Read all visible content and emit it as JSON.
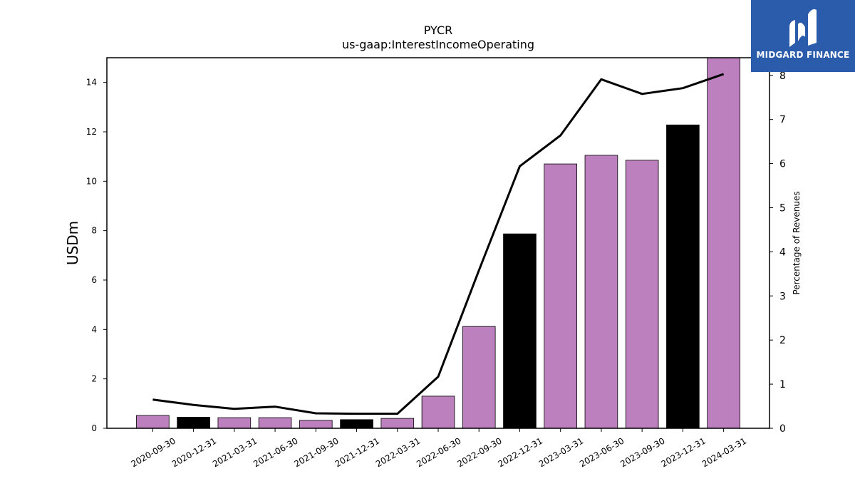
{
  "logo": {
    "text": "MIDGARD FINANCE"
  },
  "chart_data": {
    "type": "bar",
    "title": "PYCR",
    "subtitle": "us-gaap:InterestIncomeOperating",
    "ylabel": "USDm",
    "y2label": "Percentage of Revenues",
    "ylim": [
      0,
      15
    ],
    "y2lim": [
      0,
      8.4
    ],
    "yticks": [
      0,
      2,
      4,
      6,
      8,
      10,
      12,
      14
    ],
    "y2ticks": [
      0,
      1,
      2,
      3,
      4,
      5,
      6,
      7,
      8
    ],
    "categories": [
      "2020-09-30",
      "2020-12-31",
      "2021-03-31",
      "2021-06-30",
      "2021-09-30",
      "2021-12-31",
      "2022-03-31",
      "2022-06-30",
      "2022-09-30",
      "2022-12-31",
      "2023-03-31",
      "2023-06-30",
      "2023-09-30",
      "2023-12-31",
      "2024-03-31"
    ],
    "series": [
      {
        "type": "bar",
        "axis": "left",
        "values": [
          0.52,
          0.45,
          0.43,
          0.43,
          0.32,
          0.35,
          0.4,
          1.3,
          4.12,
          7.87,
          10.7,
          11.05,
          10.85,
          12.28,
          15.0
        ],
        "colors": [
          "#bb80bd",
          "#000000",
          "#bb80bd",
          "#bb80bd",
          "#bb80bd",
          "#000000",
          "#bb80bd",
          "#bb80bd",
          "#bb80bd",
          "#000000",
          "#bb80bd",
          "#bb80bd",
          "#bb80bd",
          "#000000",
          "#bb80bd"
        ]
      },
      {
        "type": "line",
        "axis": "right",
        "color": "#000000",
        "values": [
          0.65,
          0.53,
          0.44,
          0.49,
          0.34,
          0.33,
          0.33,
          1.17,
          3.58,
          5.94,
          6.64,
          7.91,
          7.58,
          7.71,
          8.03
        ]
      }
    ],
    "grid": false,
    "legend": "none"
  }
}
